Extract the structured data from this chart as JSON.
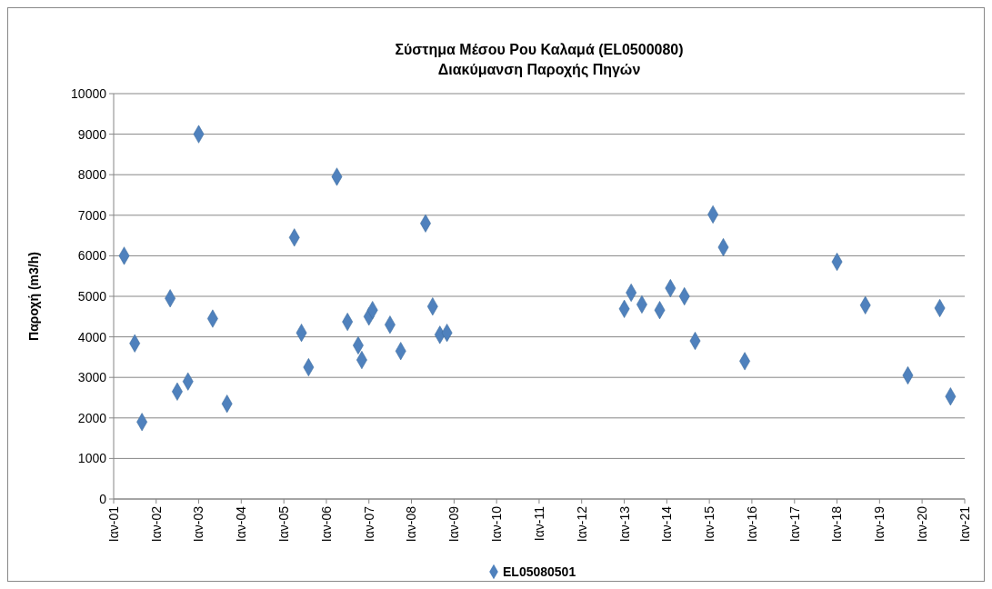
{
  "chart_data": {
    "type": "scatter",
    "title": "Σύστημα Μέσου Ρου Καλαμά (EL0500080)\nΔιακύμανση Παροχής Πηγών",
    "ylabel": "Παροχή (m3/h)",
    "marker": "diamond",
    "grid": "y",
    "legend": "bottom",
    "xlim": [
      "2001-01",
      "2021-01"
    ],
    "xticks": [
      {
        "value": "2001-01",
        "label": "Ιαν-01"
      },
      {
        "value": "2002-01",
        "label": "Ιαν-02"
      },
      {
        "value": "2003-01",
        "label": "Ιαν-03"
      },
      {
        "value": "2004-01",
        "label": "Ιαν-04"
      },
      {
        "value": "2005-01",
        "label": "Ιαν-05"
      },
      {
        "value": "2006-01",
        "label": "Ιαν-06"
      },
      {
        "value": "2007-01",
        "label": "Ιαν-07"
      },
      {
        "value": "2008-01",
        "label": "Ιαν-08"
      },
      {
        "value": "2009-01",
        "label": "Ιαν-09"
      },
      {
        "value": "2010-01",
        "label": "Ιαν-10"
      },
      {
        "value": "2011-01",
        "label": "Ιαν-11"
      },
      {
        "value": "2012-01",
        "label": "Ιαν-12"
      },
      {
        "value": "2013-01",
        "label": "Ιαν-13"
      },
      {
        "value": "2014-01",
        "label": "Ιαν-14"
      },
      {
        "value": "2015-01",
        "label": "Ιαν-15"
      },
      {
        "value": "2016-01",
        "label": "Ιαν-16"
      },
      {
        "value": "2017-01",
        "label": "Ιαν-17"
      },
      {
        "value": "2018-01",
        "label": "Ιαν-18"
      },
      {
        "value": "2019-01",
        "label": "Ιαν-19"
      },
      {
        "value": "2020-01",
        "label": "Ιαν-20"
      },
      {
        "value": "2021-01",
        "label": "Ιαν-21"
      }
    ],
    "ylim": [
      0,
      10000
    ],
    "yticks": [
      0,
      1000,
      2000,
      3000,
      4000,
      5000,
      6000,
      7000,
      8000,
      9000,
      10000
    ],
    "series": [
      {
        "name": "EL05080501",
        "color": "#4f81bd",
        "x": [
          "2001-04",
          "2001-07",
          "2001-09",
          "2002-05",
          "2002-07",
          "2002-10",
          "2003-01",
          "2003-05",
          "2003-09",
          "2005-04",
          "2005-06",
          "2005-08",
          "2006-04",
          "2006-07",
          "2006-10",
          "2006-11",
          "2007-01",
          "2007-02",
          "2007-07",
          "2007-10",
          "2008-05",
          "2008-07",
          "2008-09",
          "2008-11",
          "2013-01",
          "2013-03",
          "2013-06",
          "2013-11",
          "2014-02",
          "2014-06",
          "2014-09",
          "2015-02",
          "2015-05",
          "2015-11",
          "2018-01",
          "2018-09",
          "2019-09",
          "2020-06",
          "2020-09"
        ],
        "values": [
          6000,
          3840,
          1900,
          4950,
          2650,
          2900,
          9000,
          4450,
          2350,
          6450,
          4100,
          3250,
          7950,
          4370,
          3790,
          3430,
          4500,
          4660,
          4300,
          3650,
          6800,
          4750,
          4050,
          4100,
          4690,
          5090,
          4800,
          4660,
          5200,
          5000,
          3900,
          7020,
          6210,
          3400,
          5850,
          4780,
          3050,
          4710,
          2530
        ]
      }
    ]
  }
}
